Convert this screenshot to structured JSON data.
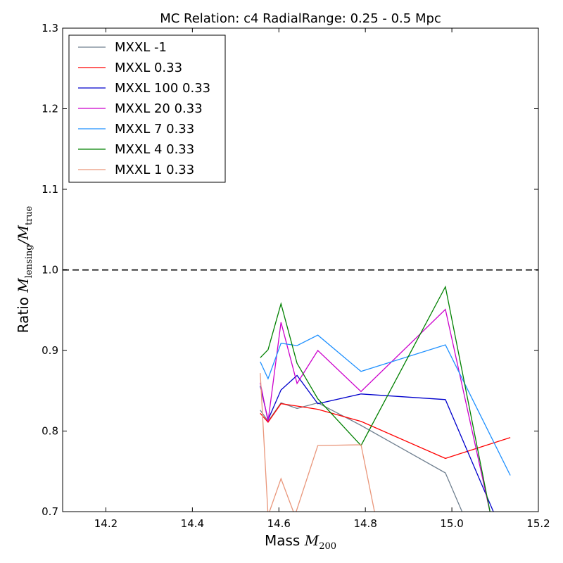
{
  "chart_data": {
    "type": "line",
    "title": "MC Relation: c4 RadialRange: 0.25 - 0.5 Mpc",
    "xlabel": {
      "prefix": "Mass ",
      "symbol": "M",
      "sub": "200"
    },
    "ylabel": {
      "prefix": "Ratio ",
      "symbol1": "M",
      "sub1": "lensing",
      "slash": "/",
      "symbol2": "M",
      "sub2": "true"
    },
    "xlim": [
      14.1,
      15.2
    ],
    "ylim": [
      0.7,
      1.3
    ],
    "xticks": [
      "14.2",
      "14.4",
      "14.6",
      "14.8",
      "15.0",
      "15.2"
    ],
    "xtick_values": [
      14.2,
      14.4,
      14.6,
      14.8,
      15.0,
      15.2
    ],
    "yticks": [
      "0.7",
      "0.8",
      "0.9",
      "1.0",
      "1.1",
      "1.2",
      "1.3"
    ],
    "ytick_values": [
      0.7,
      0.8,
      0.9,
      1.0,
      1.1,
      1.2,
      1.3
    ],
    "reference_line": {
      "y": 1.0,
      "style": "dashed",
      "color": "#555555"
    },
    "legend_position": "upper-left",
    "grid": false,
    "series": [
      {
        "name": "MXXL -1",
        "color": "#708090",
        "x": [
          14.557,
          14.575,
          14.605,
          14.642,
          14.69,
          14.79,
          14.985,
          15.03
        ],
        "y": [
          0.826,
          0.812,
          0.835,
          0.828,
          0.835,
          0.807,
          0.748,
          0.692
        ]
      },
      {
        "name": "MXXL 0.33",
        "color": "#ff0000",
        "x": [
          14.557,
          14.575,
          14.605,
          14.642,
          14.69,
          14.79,
          14.985,
          15.135
        ],
        "y": [
          0.822,
          0.811,
          0.834,
          0.831,
          0.827,
          0.812,
          0.766,
          0.792
        ]
      },
      {
        "name": "MXXL 100 0.33",
        "color": "#0000cc",
        "x": [
          14.557,
          14.575,
          14.605,
          14.642,
          14.69,
          14.79,
          14.985,
          15.1
        ],
        "y": [
          0.856,
          0.814,
          0.851,
          0.869,
          0.834,
          0.846,
          0.839,
          0.695
        ]
      },
      {
        "name": "MXXL 20 0.33",
        "color": "#cc00cc",
        "x": [
          14.557,
          14.575,
          14.605,
          14.642,
          14.69,
          14.79,
          14.985,
          15.09
        ],
        "y": [
          0.86,
          0.812,
          0.935,
          0.859,
          0.9,
          0.849,
          0.951,
          0.695
        ]
      },
      {
        "name": "MXXL 7 0.33",
        "color": "#1e90ff",
        "x": [
          14.557,
          14.575,
          14.605,
          14.642,
          14.69,
          14.79,
          14.985,
          15.135
        ],
        "y": [
          0.886,
          0.865,
          0.909,
          0.906,
          0.919,
          0.874,
          0.907,
          0.745
        ]
      },
      {
        "name": "MXXL 4 0.33",
        "color": "#008000",
        "x": [
          14.557,
          14.575,
          14.605,
          14.642,
          14.69,
          14.79,
          14.985,
          15.09
        ],
        "y": [
          0.891,
          0.901,
          0.958,
          0.884,
          0.84,
          0.782,
          0.979,
          0.695
        ]
      },
      {
        "name": "MXXL 1 0.33",
        "color": "#e9967a",
        "x": [
          14.557,
          14.575,
          14.605,
          14.637,
          14.69,
          14.79,
          14.823
        ],
        "y": [
          0.872,
          0.695,
          0.741,
          0.695,
          0.782,
          0.783,
          0.695
        ]
      }
    ]
  }
}
